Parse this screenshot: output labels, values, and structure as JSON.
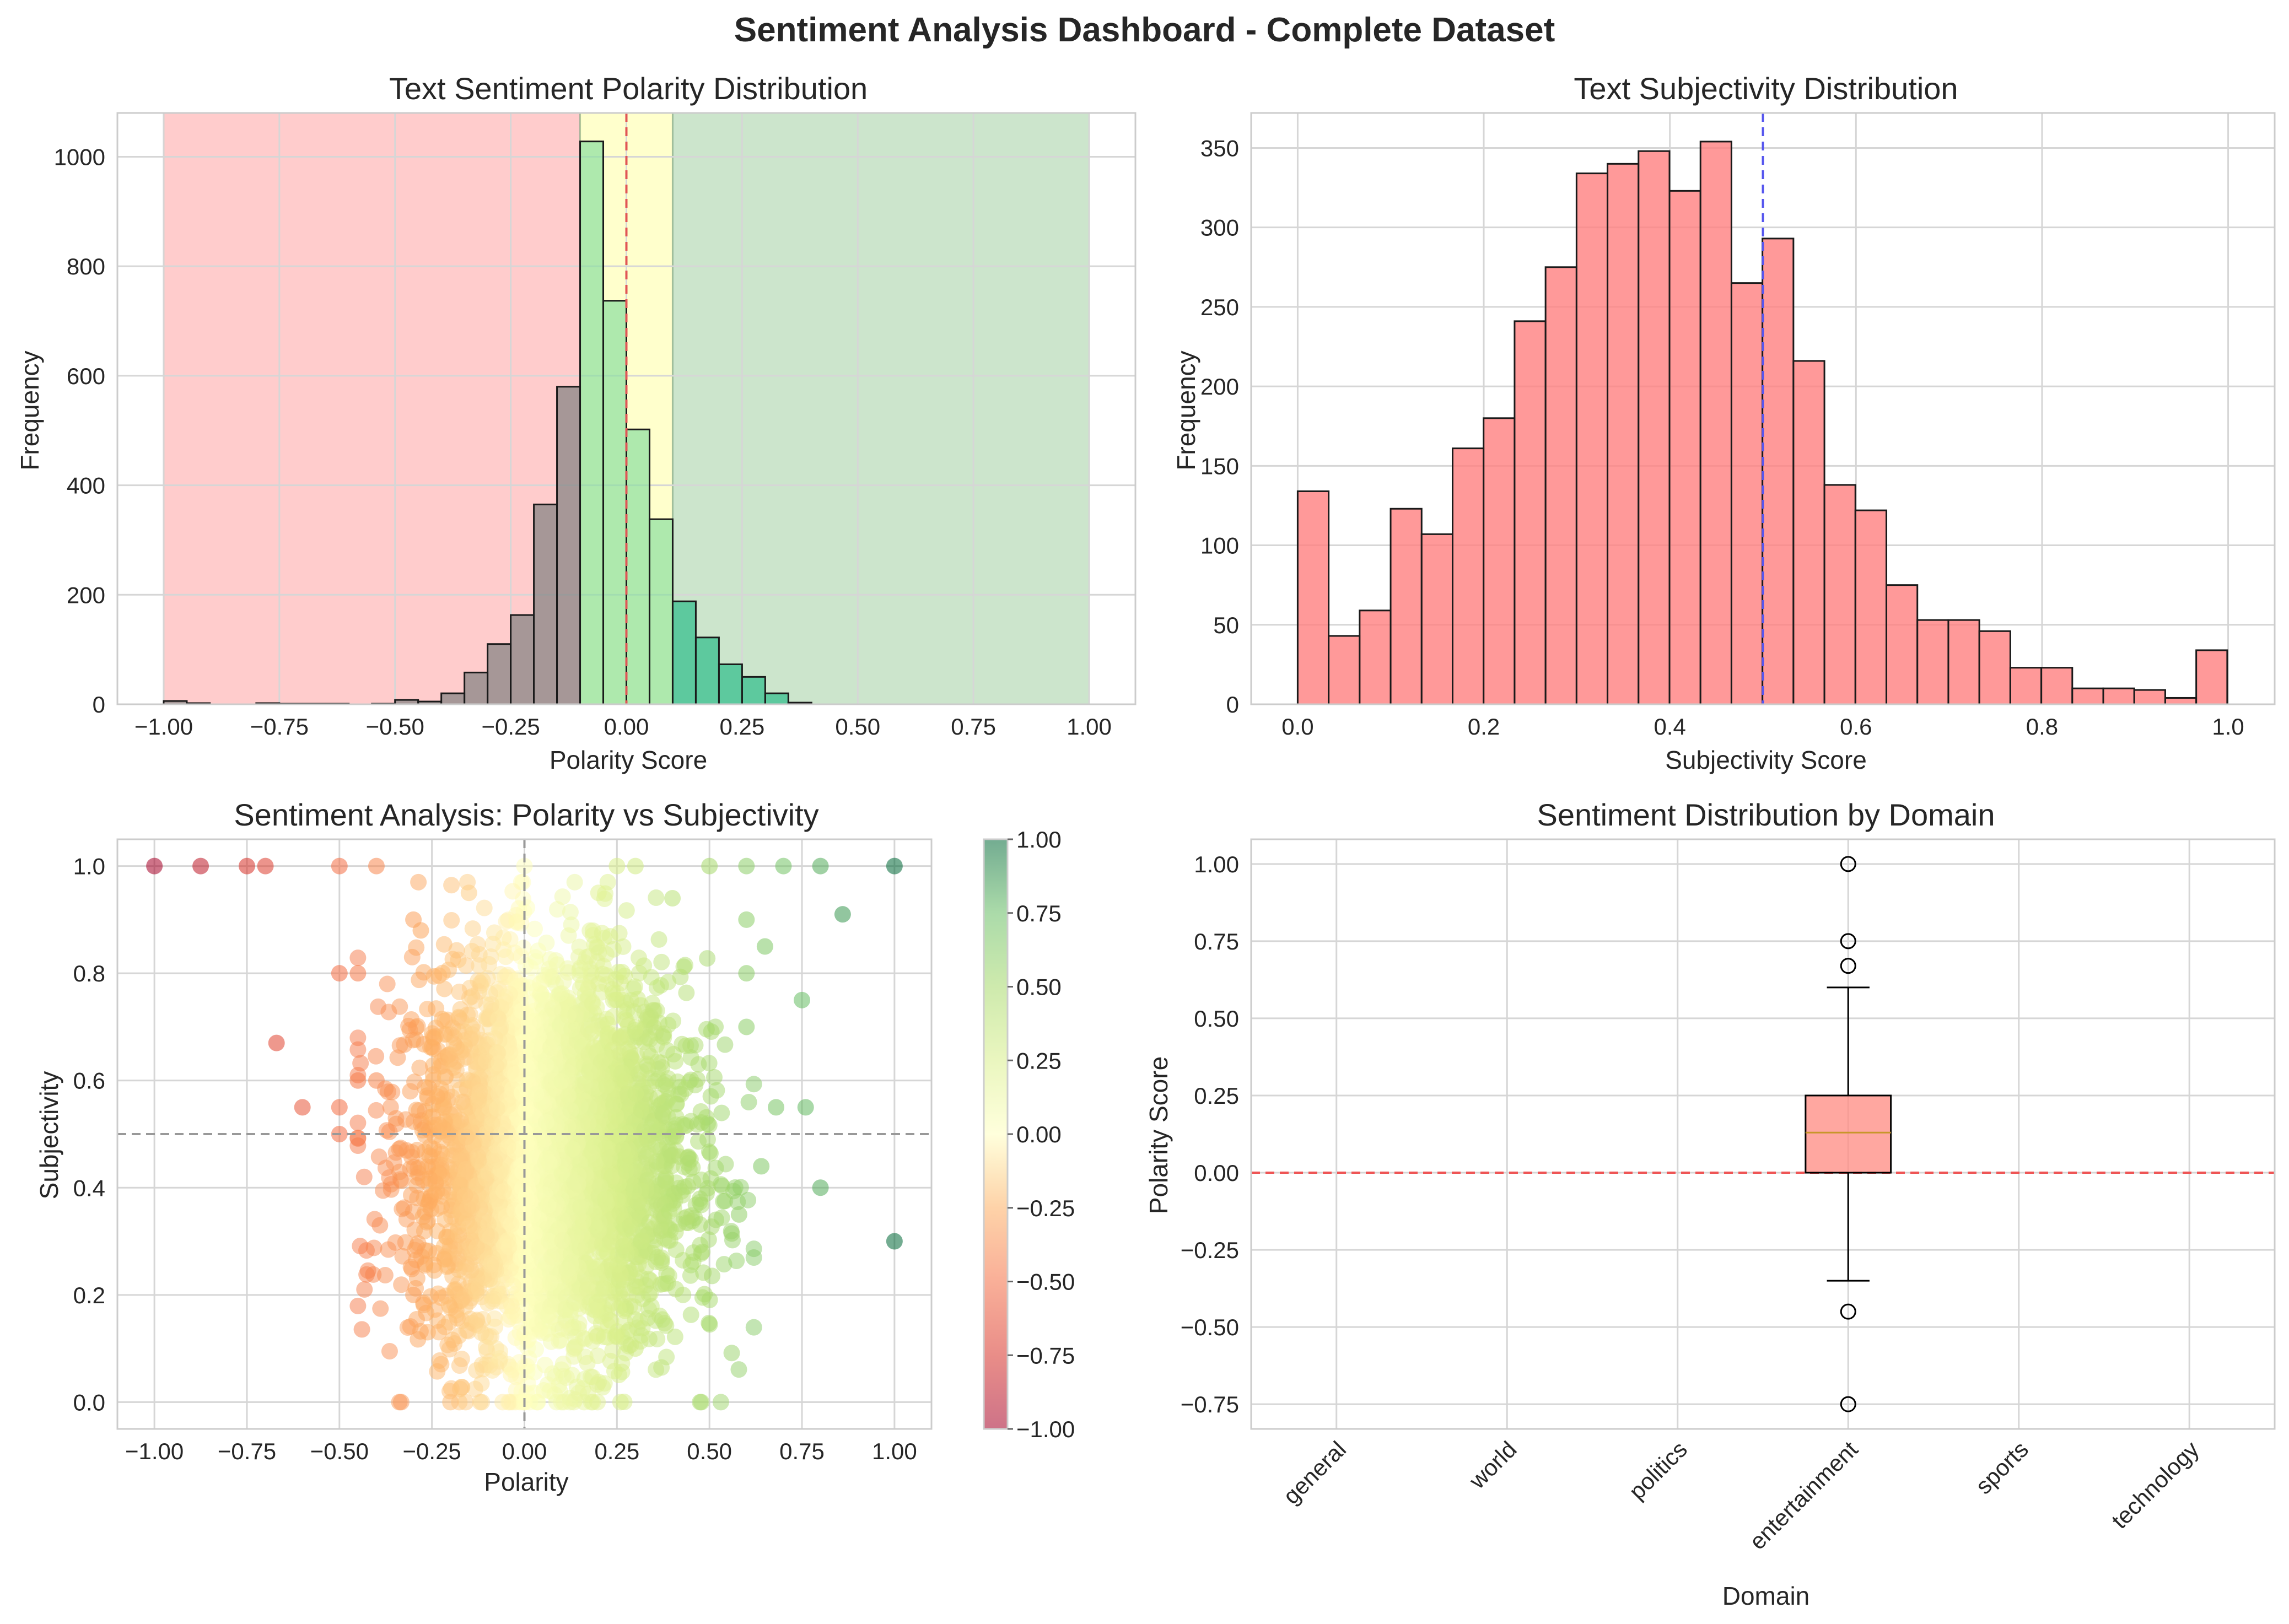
{
  "suptitle": "Sentiment Analysis Dashboard - Complete Dataset",
  "chart_data": [
    {
      "type": "bar",
      "subtype": "histogram",
      "title": "Text Sentiment Polarity Distribution",
      "xlabel": "Polarity Score",
      "ylabel": "Frequency",
      "xlim": [
        -1.1,
        1.1
      ],
      "ylim": [
        0,
        1080
      ],
      "xticks": [
        -1.0,
        -0.75,
        -0.5,
        -0.25,
        0.0,
        0.25,
        0.5,
        0.75,
        1.0
      ],
      "xtick_labels": [
        "−1.00",
        "−0.75",
        "−0.50",
        "−0.25",
        "0.00",
        "0.25",
        "0.50",
        "0.75",
        "1.00"
      ],
      "yticks": [
        0,
        200,
        400,
        600,
        800,
        1000
      ],
      "ytick_labels": [
        "0",
        "200",
        "400",
        "600",
        "800",
        "1000"
      ],
      "bin_edges": [
        -1.0,
        -0.95,
        -0.9,
        -0.85,
        -0.8,
        -0.75,
        -0.7,
        -0.65,
        -0.6,
        -0.55,
        -0.5,
        -0.45,
        -0.4,
        -0.35,
        -0.3,
        -0.25,
        -0.2,
        -0.15,
        -0.1,
        -0.05,
        0.0,
        0.05,
        0.1,
        0.15,
        0.2,
        0.25,
        0.3,
        0.35,
        0.4,
        0.45,
        0.5,
        0.55,
        0.6,
        0.65,
        0.7,
        0.75,
        0.8,
        0.85,
        0.9,
        0.95,
        1.0
      ],
      "values": [
        6,
        2,
        0,
        0,
        2,
        1,
        1,
        1,
        0,
        1,
        8,
        5,
        20,
        58,
        110,
        163,
        365,
        580,
        1028,
        737,
        502,
        338,
        188,
        122,
        73,
        50,
        20,
        3,
        0,
        0,
        0,
        0,
        0,
        0,
        0,
        0,
        0,
        0,
        0,
        0
      ],
      "bar_colors": [
        "#808080",
        "#2ebd8a",
        "#8ce0a0"
      ],
      "regions": [
        {
          "name": "negative",
          "from": -1.0,
          "to": -0.1,
          "color": "#ff9999"
        },
        {
          "name": "neutral",
          "from": -0.1,
          "to": 0.1,
          "color": "#ffff99"
        },
        {
          "name": "positive",
          "from": 0.1,
          "to": 1.0,
          "color": "#99cc99"
        }
      ],
      "reference_line": {
        "x": 0.0,
        "color": "#e05555",
        "style": "dashed"
      },
      "grid": true
    },
    {
      "type": "bar",
      "subtype": "histogram",
      "title": "Text Subjectivity Distribution",
      "xlabel": "Subjectivity Score",
      "ylabel": "Frequency",
      "xlim": [
        -0.05,
        1.05
      ],
      "ylim": [
        0,
        372
      ],
      "xticks": [
        0.0,
        0.2,
        0.4,
        0.6,
        0.8,
        1.0
      ],
      "xtick_labels": [
        "0.0",
        "0.2",
        "0.4",
        "0.6",
        "0.8",
        "1.0"
      ],
      "yticks": [
        0,
        50,
        100,
        150,
        200,
        250,
        300,
        350
      ],
      "ytick_labels": [
        "0",
        "50",
        "100",
        "150",
        "200",
        "250",
        "300",
        "350"
      ],
      "bin_start": 0.0,
      "bin_width": 0.0333,
      "values": [
        134,
        43,
        59,
        123,
        107,
        161,
        180,
        241,
        275,
        334,
        340,
        348,
        323,
        354,
        265,
        293,
        216,
        138,
        122,
        75,
        53,
        53,
        46,
        23,
        23,
        10,
        10,
        9,
        4,
        34
      ],
      "bar_color": "#ff8080",
      "reference_line": {
        "x": 0.5,
        "color": "#5555ee",
        "style": "dashed"
      },
      "grid": true
    },
    {
      "type": "scatter",
      "title": "Sentiment Analysis: Polarity vs Subjectivity",
      "xlabel": "Polarity",
      "ylabel": "Subjectivity",
      "xlim": [
        -1.1,
        1.1
      ],
      "ylim": [
        -0.05,
        1.05
      ],
      "xticks": [
        -1.0,
        -0.75,
        -0.5,
        -0.25,
        0.0,
        0.25,
        0.5,
        0.75,
        1.0
      ],
      "xtick_labels": [
        "−1.00",
        "−0.75",
        "−0.50",
        "−0.25",
        "0.00",
        "0.25",
        "0.50",
        "0.75",
        "1.00"
      ],
      "yticks": [
        0.0,
        0.2,
        0.4,
        0.6,
        0.8,
        1.0
      ],
      "ytick_labels": [
        "0.0",
        "0.2",
        "0.4",
        "0.6",
        "0.8",
        "1.0"
      ],
      "colormap": "RdYlGn",
      "colorbar": {
        "range": [
          -1.0,
          1.0
        ],
        "ticks": [
          1.0,
          0.75,
          0.5,
          0.25,
          0.0,
          -0.25,
          -0.5,
          -0.75,
          -1.0
        ],
        "tick_labels": [
          "1.00",
          "0.75",
          "0.50",
          "0.25",
          "0.00",
          "−0.25",
          "−0.50",
          "−0.75",
          "−1.00"
        ]
      },
      "reference_lines": [
        {
          "axis": "x",
          "value": 0.0
        },
        {
          "axis": "y",
          "value": 0.5
        }
      ],
      "points": [
        [
          -1.0,
          1.0
        ],
        [
          -0.875,
          1.0
        ],
        [
          -0.75,
          1.0
        ],
        [
          -0.7,
          1.0
        ],
        [
          -0.5,
          1.0
        ],
        [
          -0.4,
          1.0
        ],
        [
          0.0,
          1.0
        ],
        [
          0.25,
          1.0
        ],
        [
          0.3,
          1.0
        ],
        [
          0.5,
          1.0
        ],
        [
          0.6,
          1.0
        ],
        [
          0.7,
          1.0
        ],
        [
          0.8,
          1.0
        ],
        [
          1.0,
          1.0
        ],
        [
          -0.67,
          0.67
        ],
        [
          -0.6,
          0.55
        ],
        [
          -0.5,
          0.5
        ],
        [
          -0.5,
          0.8
        ],
        [
          -0.45,
          0.8
        ],
        [
          -0.5,
          0.55
        ],
        [
          -0.45,
          0.6
        ],
        [
          -0.4,
          0.6
        ],
        [
          -0.3,
          0.9
        ],
        [
          -0.28,
          0.88
        ],
        [
          -0.15,
          0.95
        ],
        [
          0.86,
          0.91
        ],
        [
          0.75,
          0.75
        ],
        [
          0.76,
          0.55
        ],
        [
          0.8,
          0.4
        ],
        [
          1.0,
          0.3
        ],
        [
          0.68,
          0.55
        ],
        [
          0.65,
          0.85
        ],
        [
          0.6,
          0.8
        ],
        [
          0.6,
          0.7
        ],
        [
          0.6,
          0.9
        ],
        [
          0.4,
          0.94
        ],
        [
          0.2,
          0.95
        ],
        [
          0.64,
          0.44
        ],
        [
          0.58,
          0.35
        ],
        [
          0.36,
          0.27
        ],
        [
          0.3,
          0.1
        ],
        [
          0.0,
          0.0
        ],
        [
          -0.2,
          0.0
        ],
        [
          -0.3,
          0.2
        ]
      ],
      "dense_cloud": {
        "x_center": 0.07,
        "x_spread": 0.18,
        "y_center": 0.45,
        "y_spread": 0.18,
        "count": 4200
      },
      "grid": true
    },
    {
      "type": "box",
      "title": "Sentiment Distribution by Domain",
      "xlabel": "Domain",
      "ylabel": "Polarity Score",
      "categories": [
        "general",
        "world",
        "politics",
        "entertainment",
        "sports",
        "technology"
      ],
      "ylim": [
        -0.83,
        1.08
      ],
      "yticks": [
        -0.75,
        -0.5,
        -0.25,
        0.0,
        0.25,
        0.5,
        0.75,
        1.0
      ],
      "ytick_labels": [
        "−0.75",
        "−0.50",
        "−0.25",
        "0.00",
        "0.25",
        "0.50",
        "0.75",
        "1.00"
      ],
      "boxes": [
        {
          "category": "entertainment",
          "q1": 0.0,
          "median": 0.13,
          "q3": 0.25,
          "whisker_low": -0.35,
          "whisker_high": 0.6,
          "outliers": [
            1.0,
            0.75,
            0.67,
            -0.45,
            -0.75
          ]
        }
      ],
      "box_color": "#ff8a80",
      "median_color": "#c8962a",
      "reference_line": {
        "y": 0.0,
        "color": "#ee5555",
        "style": "dashed"
      },
      "grid": true
    }
  ]
}
